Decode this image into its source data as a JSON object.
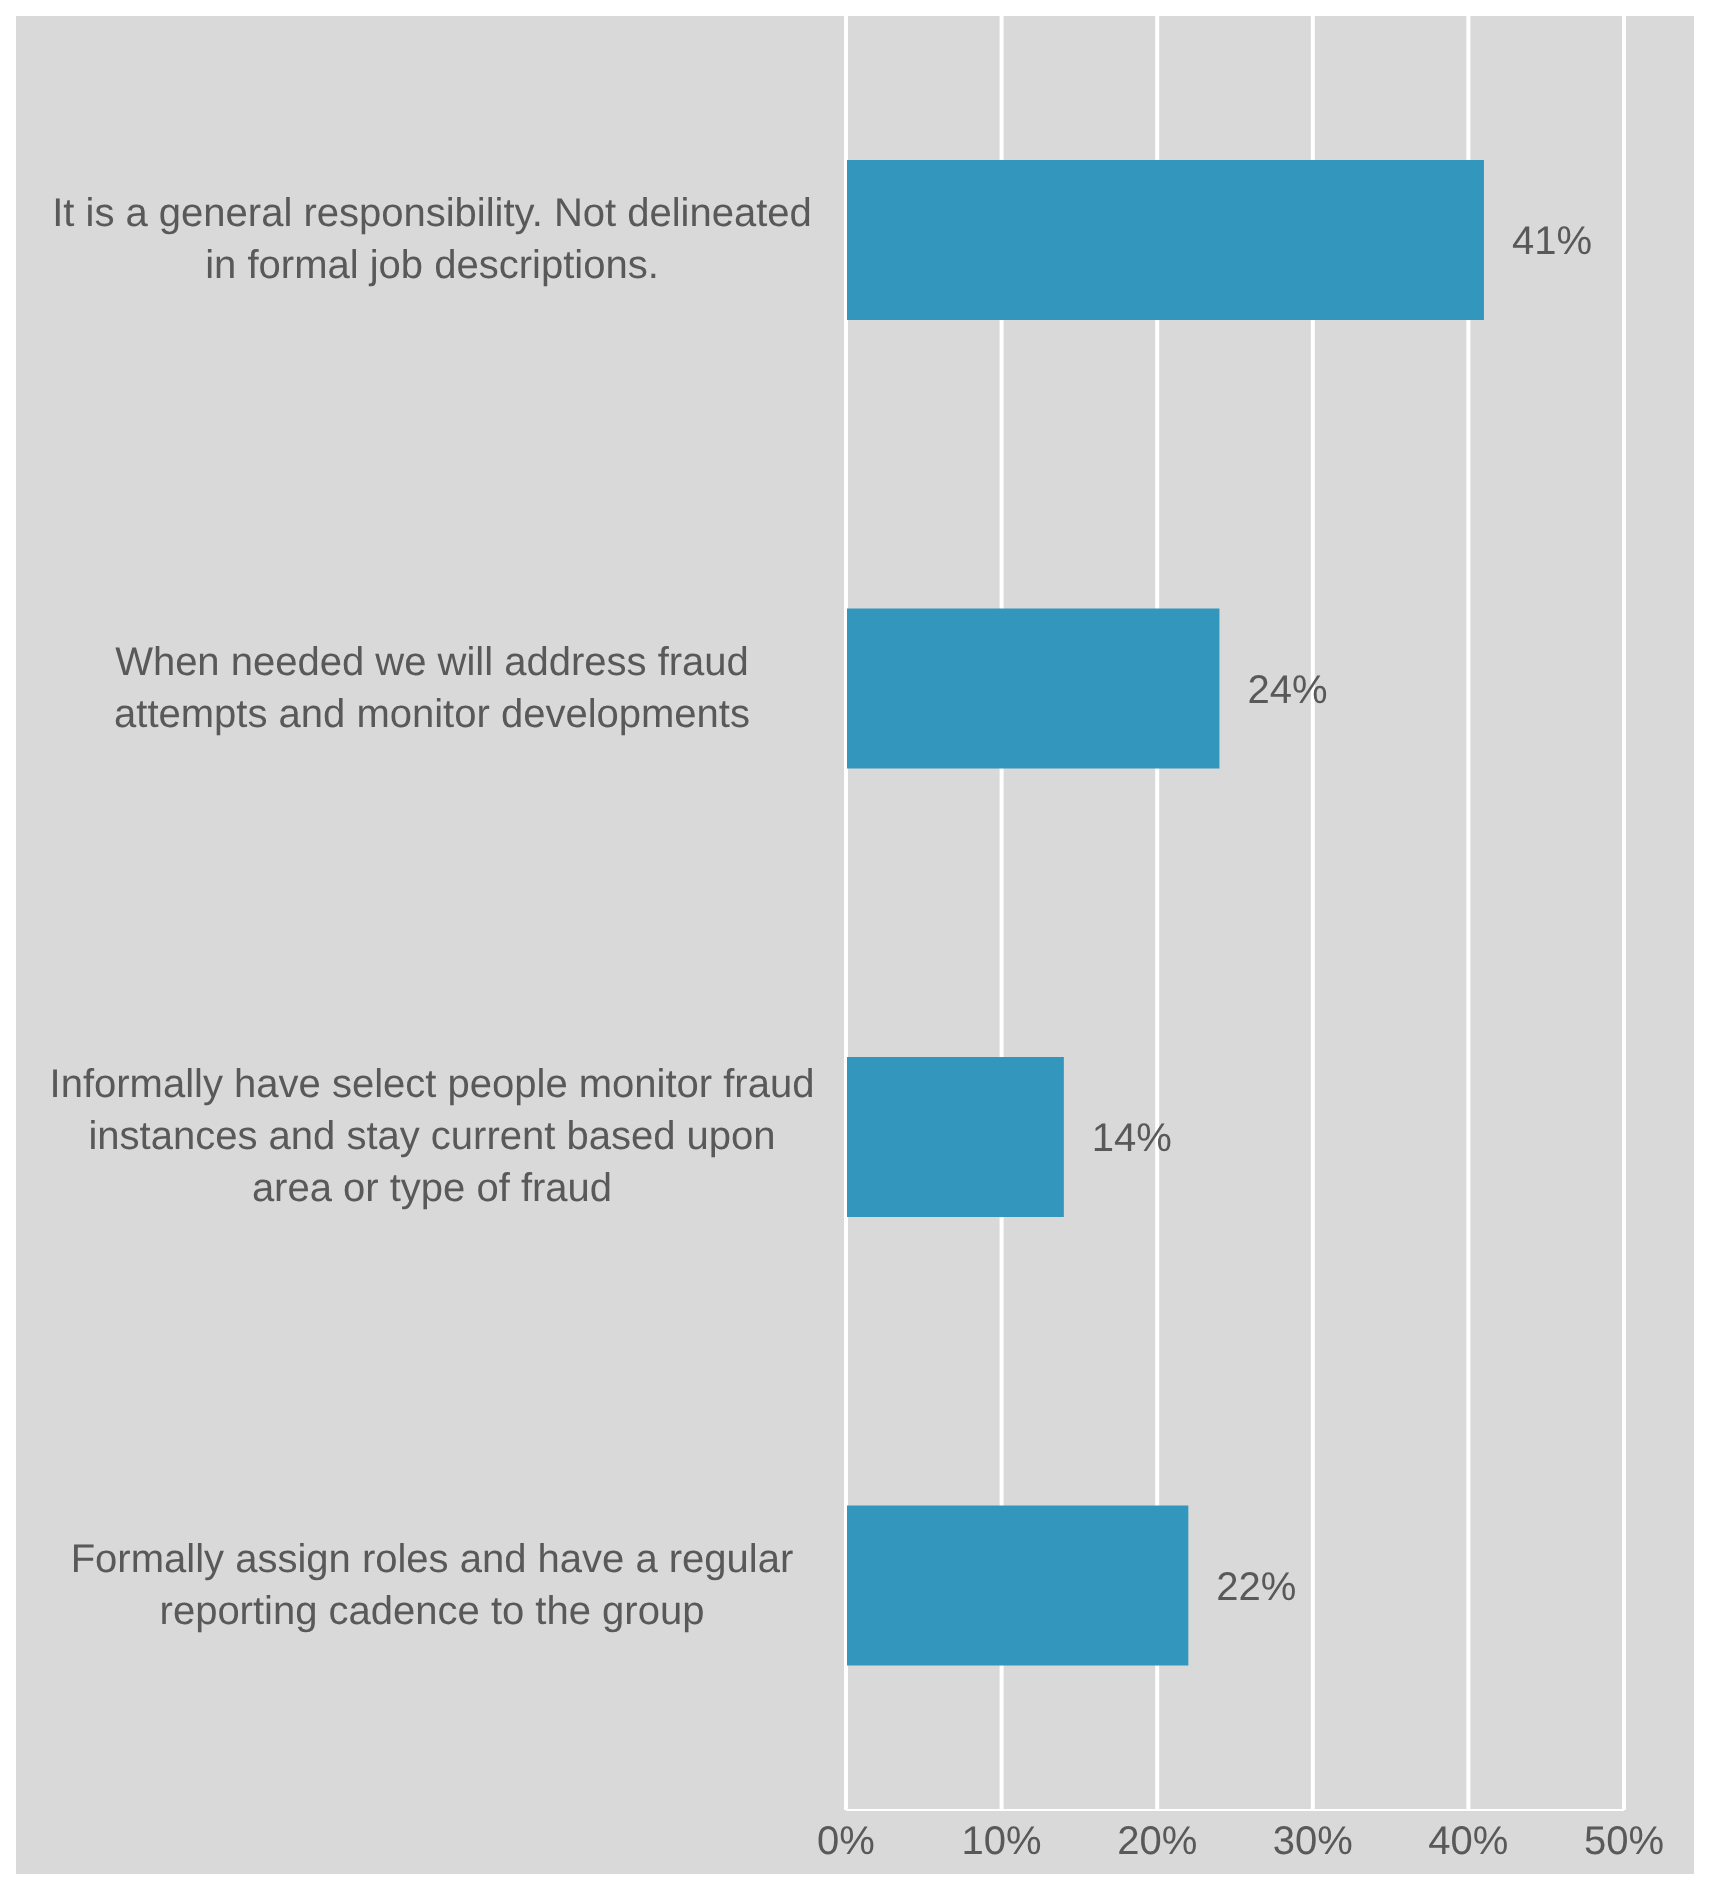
{
  "chart_data": {
    "type": "bar",
    "orientation": "horizontal",
    "categories": [
      "It is a general responsibility. Not delineated in formal job descriptions.",
      "When needed we will address fraud attempts and monitor developments",
      "Informally have select people monitor fraud instances and stay current based upon area or type of fraud",
      "Formally assign roles and have a regular reporting cadence to the group"
    ],
    "values": [
      41,
      24,
      14,
      22
    ],
    "color": "#3396bd",
    "value_labels": [
      "41%",
      "24%",
      "14%",
      "22%"
    ],
    "xlim": [
      0,
      50
    ],
    "xticks": [
      {
        "value": 0,
        "label": "0%"
      },
      {
        "value": 10,
        "label": "10%"
      },
      {
        "value": 20,
        "label": "20%"
      },
      {
        "value": 30,
        "label": "30%"
      },
      {
        "value": 40,
        "label": "40%"
      },
      {
        "value": 50,
        "label": "50%"
      }
    ],
    "grid": "x",
    "legend": false
  }
}
